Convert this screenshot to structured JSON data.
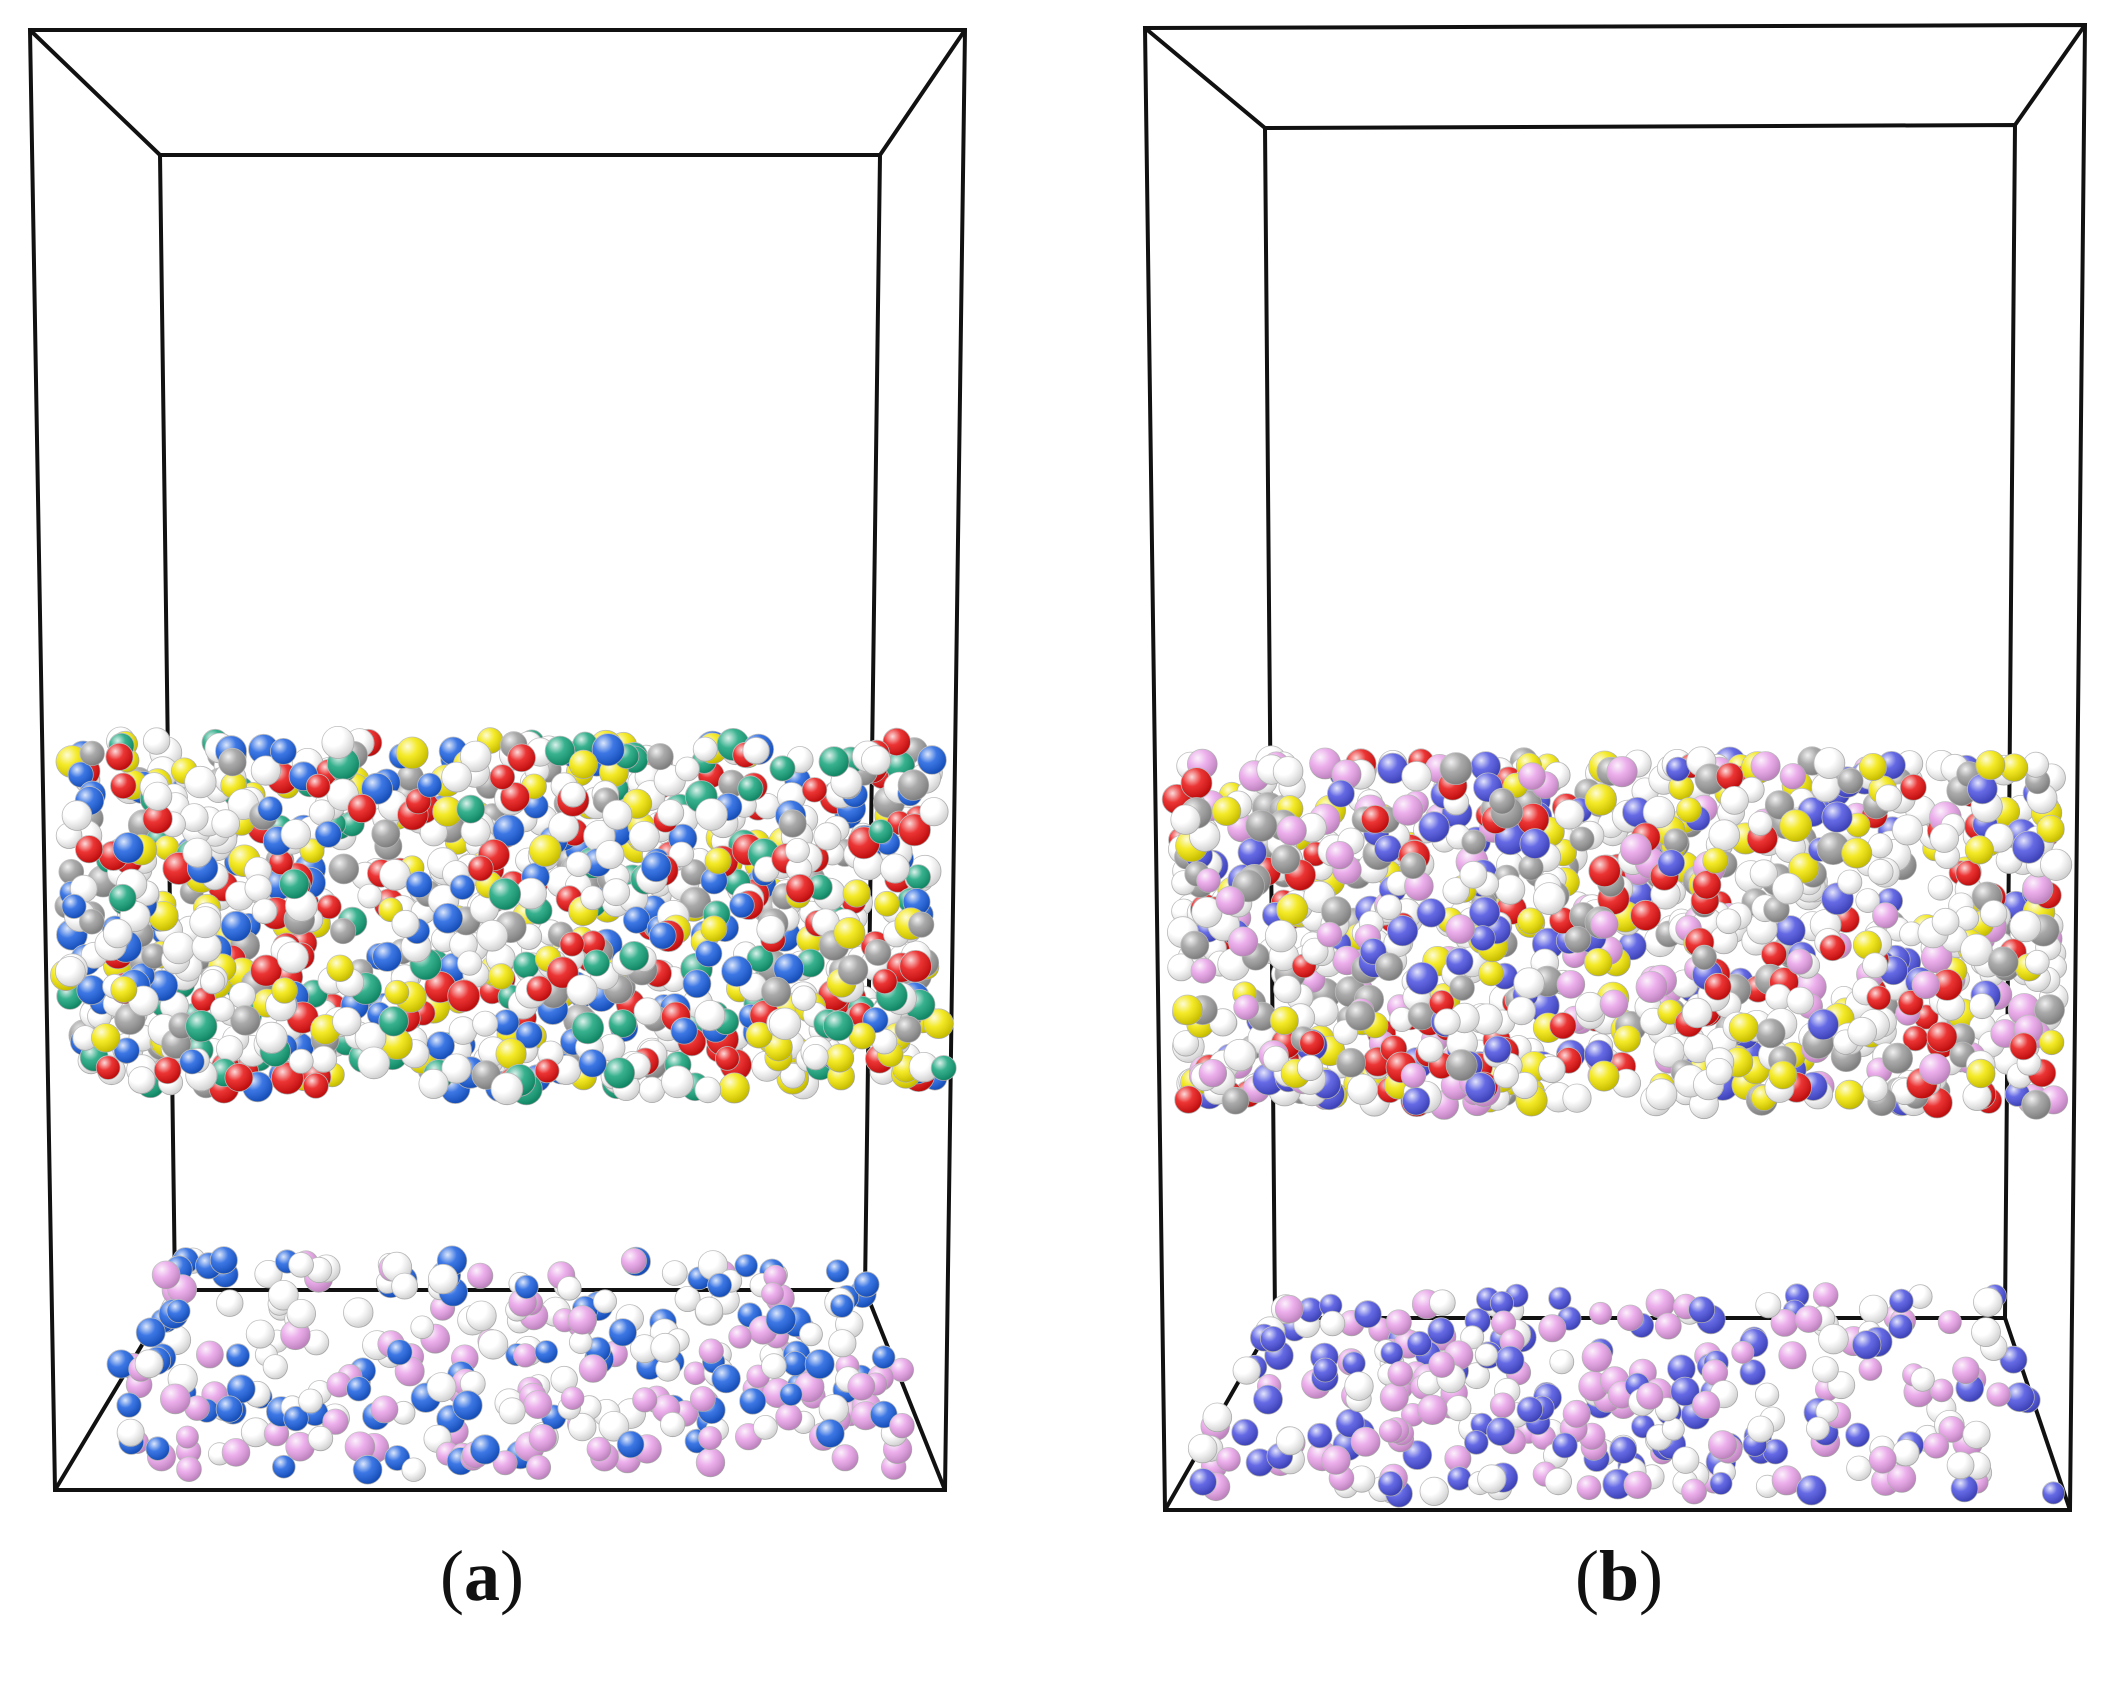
{
  "panels": [
    {
      "id": "a",
      "label": "a",
      "slab_colors": [
        "#ffffff",
        "#ffffff",
        "#ffffff",
        "#9a9a9a",
        "#e81010",
        "#f2e600",
        "#14a37a",
        "#1a5fe0"
      ],
      "base_colors": [
        "#e8a0e8",
        "#ffffff",
        "#1a5fe0"
      ]
    },
    {
      "id": "b",
      "label": "b",
      "slab_colors": [
        "#ffffff",
        "#ffffff",
        "#ffffff",
        "#9a9a9a",
        "#e81010",
        "#f2e600",
        "#4a50e0",
        "#e8a0e8"
      ],
      "base_colors": [
        "#e8a0e8",
        "#ffffff",
        "#4a50e0"
      ]
    }
  ]
}
